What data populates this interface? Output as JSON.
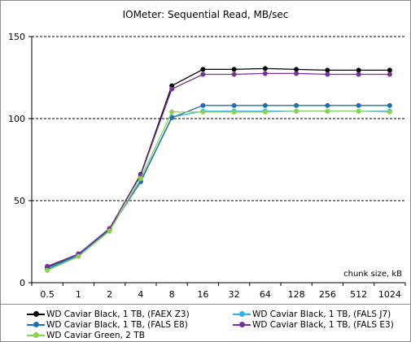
{
  "chart_data": {
    "type": "line",
    "title": "IOMeter: Sequential Read, MB/sec",
    "xlabel": "chunk size, kB",
    "ylabel": "",
    "categories": [
      "0.5",
      "1",
      "2",
      "4",
      "8",
      "16",
      "32",
      "64",
      "128",
      "256",
      "512",
      "1024"
    ],
    "ylim": [
      0,
      150
    ],
    "yticks": [
      "0",
      "50",
      "100",
      "150"
    ],
    "grid": true,
    "legend_position": "bottom",
    "series": [
      {
        "name": "WD Caviar Black, 1 TB, (FAEX Z3)",
        "color": "#000000",
        "values": [
          9.5,
          17.5,
          33,
          66,
          120,
          130,
          130,
          130.5,
          130,
          129.5,
          129.5,
          129.5
        ]
      },
      {
        "name": "WD Caviar Black, 1 TB, (FALS J7)",
        "color": "#26b5e8",
        "values": [
          8,
          16.5,
          32,
          62,
          101,
          104.5,
          104.5,
          104.5,
          104.5,
          104.5,
          104.5,
          104.5
        ]
      },
      {
        "name": "WD Caviar Black, 1 TB, (FALS E8)",
        "color": "#1f6fb5",
        "values": [
          8.5,
          17,
          32.5,
          61.5,
          100.5,
          108,
          108,
          108,
          108,
          108,
          108,
          108
        ]
      },
      {
        "name": "WD Caviar Black, 1 TB, (FALS E3)",
        "color": "#7a2fa0",
        "values": [
          10,
          17.5,
          33,
          65.5,
          118,
          127,
          127,
          127.5,
          127.5,
          127,
          127,
          127
        ]
      },
      {
        "name": "WD Caviar Green, 2 TB",
        "color": "#8ed14b",
        "values": [
          7.5,
          16,
          31.5,
          63.5,
          104,
          104,
          104,
          104,
          104.5,
          104.5,
          104.5,
          104
        ]
      }
    ]
  }
}
